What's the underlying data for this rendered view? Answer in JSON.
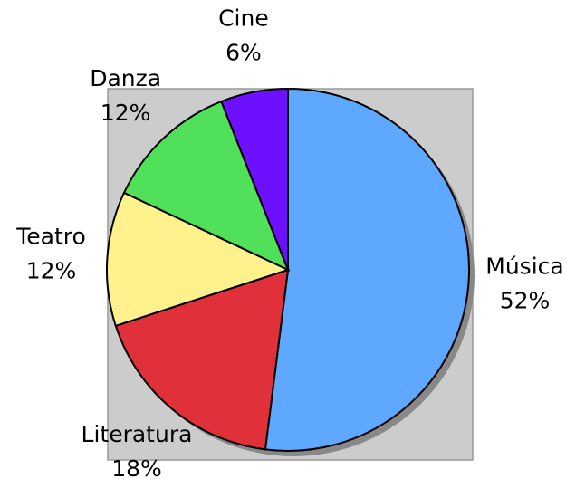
{
  "chart_data": {
    "type": "pie",
    "categories": [
      "Música",
      "Literatura",
      "Teatro",
      "Danza",
      "Cine"
    ],
    "values": [
      52,
      18,
      12,
      12,
      6
    ],
    "value_labels": [
      "52%",
      "18%",
      "12%",
      "12%",
      "6%"
    ],
    "colors": [
      "#5ea8ff",
      "#e0303a",
      "#fff28c",
      "#50e05a",
      "#6c10ff"
    ]
  }
}
